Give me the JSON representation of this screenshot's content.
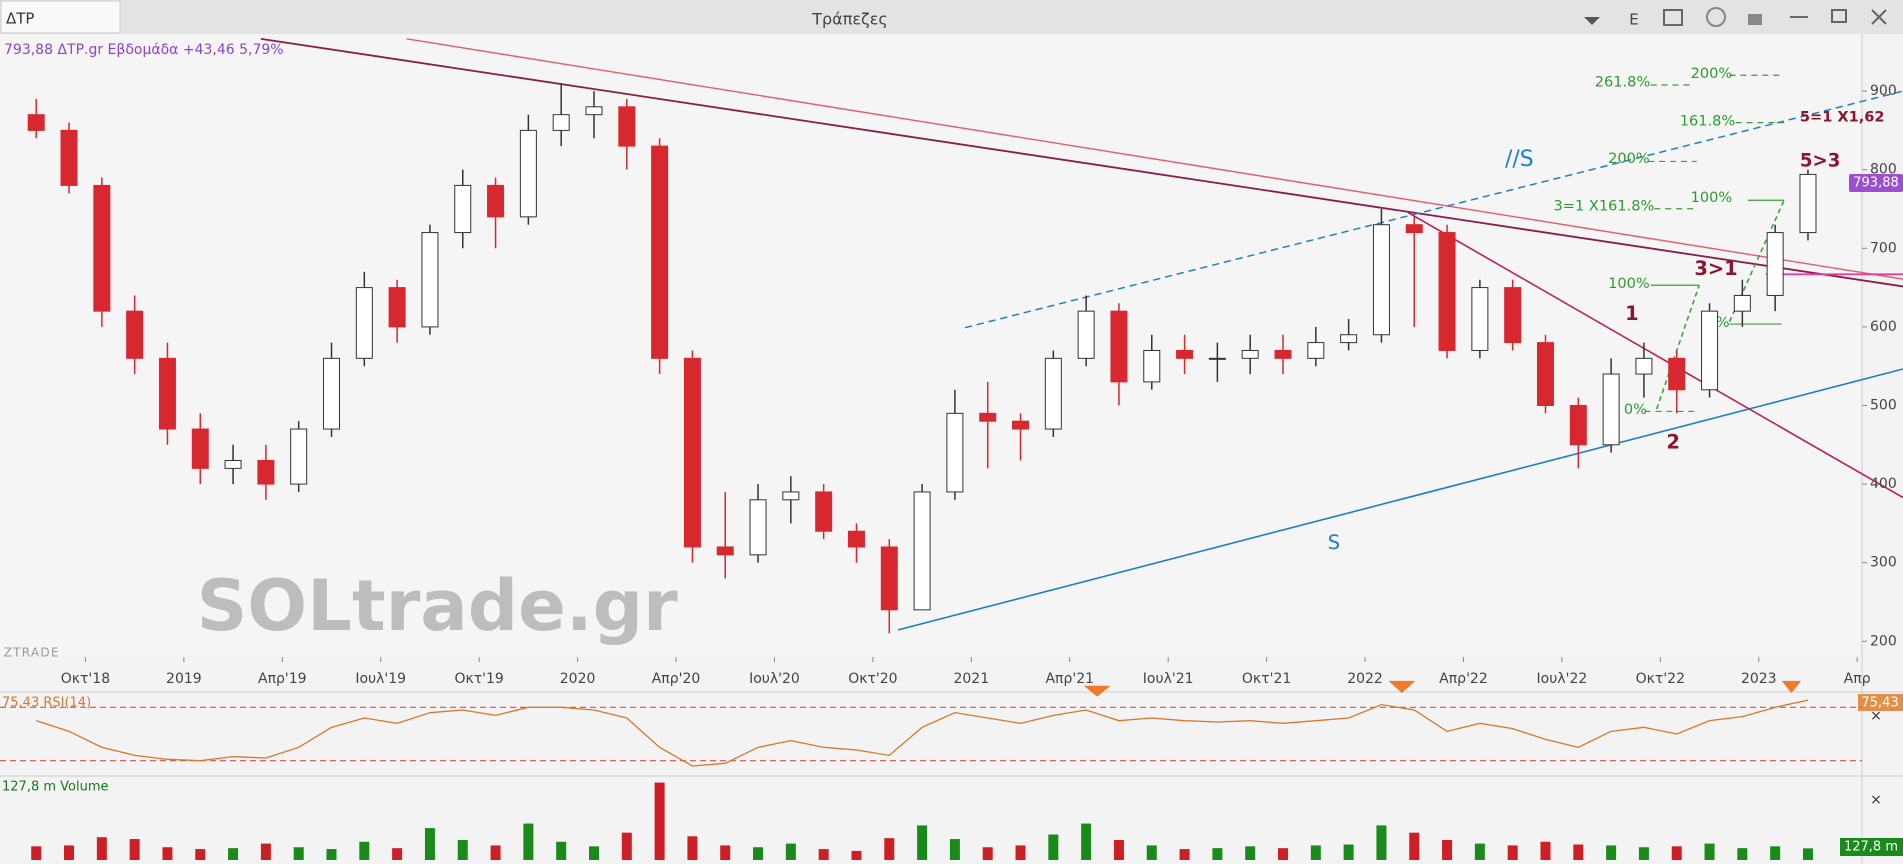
{
  "window": {
    "symbol": "ΔΤΡ",
    "title": "Τράπεζες",
    "menu": "E"
  },
  "chart_data": {
    "type": "candlestick",
    "info": "793,88 ΔΤΡ.gr Εβδομάδα +43,46 5,79%",
    "watermark": "SOLtrade.gr",
    "brand": "ZTRADE",
    "last_label": "793,88",
    "x": [
      "2018-08",
      "2018-09",
      "2018-10",
      "2018-11",
      "2018-12",
      "2019-01",
      "2019-02",
      "2019-03",
      "2019-04",
      "2019-05",
      "2019-06",
      "2019-07",
      "2019-08",
      "2019-09",
      "2019-10",
      "2019-11",
      "2019-12",
      "2020-01",
      "2020-02",
      "2020-03",
      "2020-04",
      "2020-05",
      "2020-06",
      "2020-07",
      "2020-08",
      "2020-09",
      "2020-10",
      "2020-11",
      "2020-12",
      "2021-01",
      "2021-02",
      "2021-03",
      "2021-04",
      "2021-05",
      "2021-06",
      "2021-07",
      "2021-08",
      "2021-09",
      "2021-10",
      "2021-11",
      "2021-12",
      "2022-01",
      "2022-02",
      "2022-03",
      "2022-04",
      "2022-05",
      "2022-06",
      "2022-07",
      "2022-08",
      "2022-09",
      "2022-10",
      "2022-11",
      "2022-12",
      "2023-01",
      "2023-02"
    ],
    "open": [
      870,
      850,
      780,
      620,
      560,
      470,
      420,
      430,
      400,
      470,
      560,
      650,
      600,
      720,
      780,
      740,
      850,
      870,
      880,
      830,
      560,
      320,
      310,
      380,
      390,
      340,
      320,
      240,
      390,
      490,
      480,
      470,
      560,
      620,
      530,
      570,
      560,
      560,
      570,
      560,
      580,
      590,
      730,
      720,
      570,
      650,
      580,
      500,
      450,
      540,
      560,
      520,
      620,
      640,
      720
    ],
    "high": [
      890,
      860,
      790,
      640,
      580,
      490,
      450,
      450,
      480,
      580,
      670,
      660,
      730,
      800,
      790,
      870,
      910,
      900,
      890,
      840,
      570,
      390,
      400,
      410,
      400,
      350,
      330,
      400,
      520,
      530,
      490,
      570,
      640,
      630,
      590,
      590,
      580,
      590,
      590,
      600,
      610,
      750,
      740,
      730,
      660,
      660,
      590,
      510,
      560,
      580,
      570,
      630,
      660,
      730,
      800
    ],
    "low": [
      840,
      770,
      600,
      540,
      450,
      400,
      400,
      380,
      390,
      460,
      550,
      580,
      590,
      700,
      700,
      730,
      830,
      840,
      800,
      540,
      300,
      280,
      300,
      350,
      330,
      300,
      210,
      240,
      380,
      420,
      430,
      460,
      550,
      500,
      520,
      540,
      530,
      540,
      540,
      550,
      570,
      580,
      600,
      560,
      560,
      570,
      490,
      420,
      440,
      510,
      490,
      510,
      600,
      620,
      710
    ],
    "close": [
      850,
      780,
      620,
      560,
      470,
      420,
      430,
      400,
      470,
      560,
      650,
      600,
      720,
      780,
      740,
      850,
      870,
      880,
      830,
      560,
      320,
      310,
      380,
      390,
      340,
      320,
      240,
      390,
      490,
      480,
      470,
      560,
      620,
      530,
      570,
      560,
      560,
      570,
      560,
      580,
      590,
      730,
      720,
      570,
      650,
      580,
      500,
      450,
      540,
      560,
      520,
      620,
      640,
      720,
      794
    ],
    "up_color": "#ffffff",
    "down_color": "#d8282f",
    "xlim": [
      "2018-07",
      "2023-05"
    ],
    "xticks": [
      {
        "value": "2018-10",
        "label": "Οκτ'18"
      },
      {
        "value": "2019-01",
        "label": "2019"
      },
      {
        "value": "2019-04",
        "label": "Απρ'19"
      },
      {
        "value": "2019-07",
        "label": "Ιουλ'19"
      },
      {
        "value": "2019-10",
        "label": "Οκτ'19"
      },
      {
        "value": "2020-01",
        "label": "2020"
      },
      {
        "value": "2020-04",
        "label": "Απρ'20"
      },
      {
        "value": "2020-07",
        "label": "Ιουλ'20"
      },
      {
        "value": "2020-10",
        "label": "Οκτ'20"
      },
      {
        "value": "2021-01",
        "label": "2021"
      },
      {
        "value": "2021-04",
        "label": "Απρ'21"
      },
      {
        "value": "2021-07",
        "label": "Ιουλ'21"
      },
      {
        "value": "2021-10",
        "label": "Οκτ'21"
      },
      {
        "value": "2022-01",
        "label": "2022"
      },
      {
        "value": "2022-04",
        "label": "Απρ'22"
      },
      {
        "value": "2022-07",
        "label": "Ιουλ'22"
      },
      {
        "value": "2022-10",
        "label": "Οκτ'22"
      },
      {
        "value": "2023-01",
        "label": "2023"
      },
      {
        "value": "2023-04",
        "label": "Απρ"
      }
    ],
    "ylim": [
      180,
      965
    ],
    "yticks": [
      200,
      300,
      400,
      500,
      600,
      700,
      800,
      900
    ],
    "annotations": [
      "//S",
      "S",
      "1",
      "2",
      "3>1",
      "5>3",
      "5=1 X1,62",
      "261.8%",
      "200%",
      "161.8%",
      "200%",
      "100%",
      "3=1 X161.8%",
      "100%",
      "0%",
      "0%"
    ],
    "rsi": {
      "label": "75,43 RSI(14)",
      "value_label": "75,43",
      "color": "#d9772b",
      "ylim": [
        20,
        80
      ],
      "levels": [
        70,
        30
      ],
      "values": [
        60,
        52,
        40,
        34,
        31,
        30,
        33,
        32,
        40,
        55,
        62,
        58,
        66,
        68,
        64,
        70,
        70,
        68,
        62,
        40,
        26,
        28,
        40,
        45,
        40,
        38,
        34,
        55,
        66,
        62,
        58,
        64,
        68,
        60,
        62,
        60,
        59,
        60,
        58,
        60,
        62,
        72,
        68,
        52,
        58,
        54,
        46,
        40,
        52,
        55,
        50,
        60,
        63,
        70,
        75.43
      ]
    },
    "volume": {
      "label": "127,8 m Volume",
      "value_label": "127,8 m",
      "ylim": [
        0,
        900
      ],
      "up_color": "#1a8a1a",
      "down_color": "#cc1f26",
      "values": [
        150,
        160,
        250,
        230,
        140,
        120,
        130,
        180,
        140,
        120,
        200,
        130,
        350,
        220,
        160,
        400,
        200,
        150,
        300,
        850,
        260,
        160,
        140,
        180,
        120,
        100,
        240,
        380,
        230,
        140,
        160,
        280,
        400,
        220,
        160,
        120,
        130,
        150,
        130,
        160,
        170,
        380,
        300,
        220,
        180,
        160,
        200,
        170,
        160,
        140,
        150,
        180,
        130,
        150,
        127.8
      ]
    }
  }
}
